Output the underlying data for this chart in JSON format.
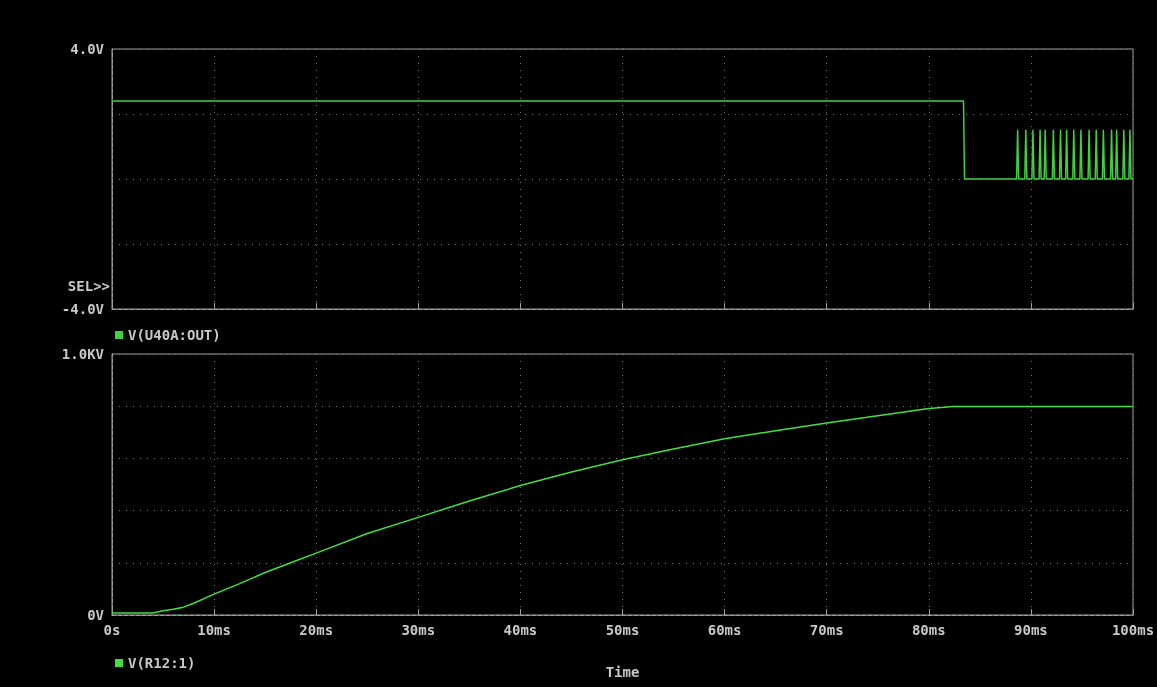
{
  "chart_data": [
    {
      "type": "line",
      "annotations": [
        "SEL>>"
      ],
      "xlim": [
        0,
        100
      ],
      "xticks": [
        {
          "value": 0,
          "label": null
        },
        {
          "value": 10,
          "label": null
        },
        {
          "value": 20,
          "label": null
        },
        {
          "value": 30,
          "label": null
        },
        {
          "value": 40,
          "label": null
        },
        {
          "value": 50,
          "label": null
        },
        {
          "value": 60,
          "label": null
        },
        {
          "value": 70,
          "label": null
        },
        {
          "value": 80,
          "label": null
        },
        {
          "value": 90,
          "label": null
        },
        {
          "value": 100,
          "label": null
        }
      ],
      "ylim": [
        -4,
        4
      ],
      "yticks": [
        {
          "value": -4,
          "label": "-4.0V"
        },
        {
          "value": -2,
          "label": null
        },
        {
          "value": 0,
          "label": null
        },
        {
          "value": 2,
          "label": null
        },
        {
          "value": 4,
          "label": "4.0V"
        }
      ],
      "tick_labels": "y",
      "grid": true,
      "legend": "bottom left",
      "marker": "none",
      "line_style": "solid",
      "series": [
        {
          "name": "V(U40A:OUT)",
          "color": "#40d040",
          "x": [
            0,
            83.4,
            83.5,
            88.6,
            88.7,
            88.8,
            89.4,
            89.5,
            89.6,
            90.1,
            90.2,
            90.3,
            90.8,
            90.9,
            91.0,
            91.3,
            91.4,
            91.5,
            92.1,
            92.2,
            92.3,
            92.8,
            92.9,
            93.0,
            93.4,
            93.5,
            93.6,
            94.1,
            94.2,
            94.3,
            94.8,
            94.9,
            95.0,
            95.6,
            95.7,
            95.8,
            96.3,
            96.4,
            96.5,
            97.0,
            97.1,
            97.2,
            97.8,
            97.9,
            98.0,
            98.3,
            98.4,
            98.5,
            99.0,
            99.1,
            99.2,
            99.6,
            99.7,
            99.8,
            100
          ],
          "values": [
            2.4,
            2.4,
            0,
            0,
            1.5,
            0,
            0,
            1.5,
            0,
            0,
            1.5,
            0,
            0,
            1.5,
            0,
            0,
            1.5,
            0,
            0,
            1.5,
            0,
            0,
            1.5,
            0,
            0,
            1.5,
            0,
            0,
            1.5,
            0,
            0,
            1.5,
            0,
            0,
            1.5,
            0,
            0,
            1.5,
            0,
            0,
            1.5,
            0,
            0,
            1.5,
            0,
            0,
            1.5,
            0,
            0,
            1.5,
            0,
            0,
            1.5,
            0,
            0
          ]
        }
      ]
    },
    {
      "type": "line",
      "xlabel": "Time",
      "xlim": [
        0,
        100
      ],
      "xticks": [
        {
          "value": 0,
          "label": "0s"
        },
        {
          "value": 10,
          "label": "10ms"
        },
        {
          "value": 20,
          "label": "20ms"
        },
        {
          "value": 30,
          "label": "30ms"
        },
        {
          "value": 40,
          "label": "40ms"
        },
        {
          "value": 50,
          "label": "50ms"
        },
        {
          "value": 60,
          "label": "60ms"
        },
        {
          "value": 70,
          "label": "70ms"
        },
        {
          "value": 80,
          "label": "80ms"
        },
        {
          "value": 90,
          "label": "90ms"
        },
        {
          "value": 100,
          "label": "100ms"
        }
      ],
      "ylim": [
        0,
        1
      ],
      "yticks": [
        {
          "value": 0,
          "label": "0V"
        },
        {
          "value": 0.2,
          "label": null
        },
        {
          "value": 0.4,
          "label": null
        },
        {
          "value": 0.6,
          "label": null
        },
        {
          "value": 0.8,
          "label": null
        },
        {
          "value": 1,
          "label": "1.0KV"
        }
      ],
      "grid": true,
      "legend": "bottom left",
      "marker": "none",
      "line_style": "solid",
      "series": [
        {
          "name": "V(R12:1)",
          "color": "#40e040",
          "x": [
            0,
            4,
            5,
            6,
            7,
            8,
            10,
            12.5,
            15,
            17.5,
            20,
            25,
            30,
            35,
            40,
            45,
            50,
            55,
            60,
            65,
            70,
            75,
            80,
            82.4,
            100
          ],
          "values": [
            0.008,
            0.008,
            0.016,
            0.022,
            0.03,
            0.045,
            0.08,
            0.12,
            0.163,
            0.2,
            0.237,
            0.312,
            0.374,
            0.437,
            0.496,
            0.548,
            0.595,
            0.636,
            0.675,
            0.706,
            0.736,
            0.763,
            0.791,
            0.799,
            0.799
          ]
        }
      ]
    }
  ]
}
